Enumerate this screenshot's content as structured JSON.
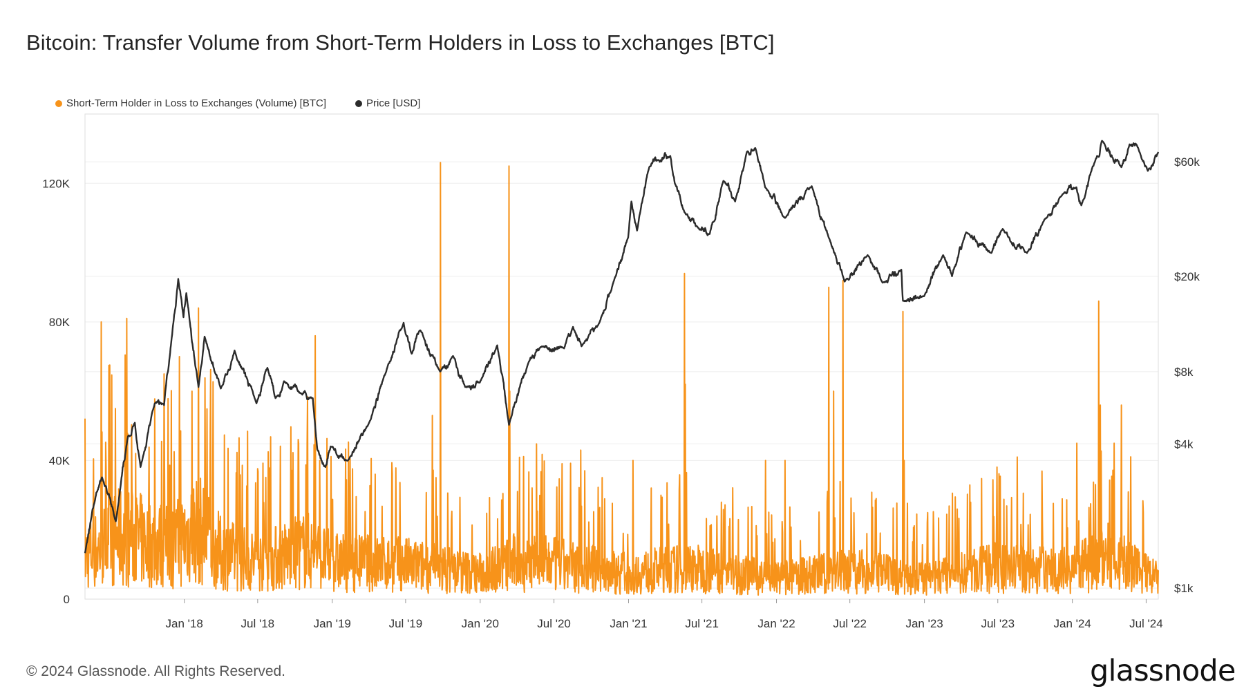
{
  "title": "Bitcoin: Transfer Volume from Short-Term Holders in Loss to Exchanges [BTC]",
  "footer": {
    "copyright": "© 2024 Glassnode. All Rights Reserved.",
    "logo": "glassnode"
  },
  "colors": {
    "volume": "#F7931A",
    "price": "#2B2B2B",
    "grid": "#EEEEEE",
    "axis": "#DDDDDD"
  },
  "chart_data": {
    "type": "line",
    "legend_position": "top-left",
    "grid": true,
    "x_range": [
      "2017-05-01",
      "2024-07-31"
    ],
    "x_ticks": [
      {
        "date": "2018-01-01",
        "label": "Jan '18"
      },
      {
        "date": "2018-07-01",
        "label": "Jul '18"
      },
      {
        "date": "2019-01-01",
        "label": "Jan '19"
      },
      {
        "date": "2019-07-01",
        "label": "Jul '19"
      },
      {
        "date": "2020-01-01",
        "label": "Jan '20"
      },
      {
        "date": "2020-07-01",
        "label": "Jul '20"
      },
      {
        "date": "2021-01-01",
        "label": "Jan '21"
      },
      {
        "date": "2021-07-01",
        "label": "Jul '21"
      },
      {
        "date": "2022-01-01",
        "label": "Jan '22"
      },
      {
        "date": "2022-07-01",
        "label": "Jul '22"
      },
      {
        "date": "2023-01-01",
        "label": "Jan '23"
      },
      {
        "date": "2023-07-01",
        "label": "Jul '23"
      },
      {
        "date": "2024-01-01",
        "label": "Jan '24"
      },
      {
        "date": "2024-07-01",
        "label": "Jul '24"
      }
    ],
    "y_left": {
      "range": [
        0,
        140000
      ],
      "ticks": [
        {
          "value": 0,
          "label": "0"
        },
        {
          "value": 40000,
          "label": "40K"
        },
        {
          "value": 80000,
          "label": "80K"
        },
        {
          "value": 120000,
          "label": "120K"
        }
      ]
    },
    "y_right": {
      "scale": "log",
      "range": [
        900,
        95000
      ],
      "ticks": [
        {
          "value": 1000,
          "label": "$1k"
        },
        {
          "value": 4000,
          "label": "$4k"
        },
        {
          "value": 8000,
          "label": "$8k"
        },
        {
          "value": 20000,
          "label": "$20k"
        },
        {
          "value": 60000,
          "label": "$60k"
        }
      ]
    },
    "series": [
      {
        "name": "Short-Term Holder in Loss to Exchanges (Volume) [BTC]",
        "axis": "left",
        "color": "#F7931A",
        "baseline_points": [
          [
            "2017-05-01",
            15000
          ],
          [
            "2017-08-01",
            22000
          ],
          [
            "2017-12-01",
            18000
          ],
          [
            "2018-02-01",
            25000
          ],
          [
            "2018-04-01",
            16000
          ],
          [
            "2018-07-01",
            13000
          ],
          [
            "2018-11-01",
            17000
          ],
          [
            "2019-01-01",
            13000
          ],
          [
            "2019-07-01",
            12000
          ],
          [
            "2020-01-01",
            9000
          ],
          [
            "2020-04-01",
            13000
          ],
          [
            "2020-07-01",
            12000
          ],
          [
            "2021-01-01",
            9000
          ],
          [
            "2021-06-01",
            11000
          ],
          [
            "2022-01-01",
            7000
          ],
          [
            "2022-07-01",
            10000
          ],
          [
            "2023-01-01",
            7000
          ],
          [
            "2023-07-01",
            11000
          ],
          [
            "2024-01-01",
            10000
          ],
          [
            "2024-04-01",
            15000
          ],
          [
            "2024-07-31",
            7000
          ]
        ],
        "spikes": [
          [
            "2017-06-10",
            80000
          ],
          [
            "2017-07-15",
            55000
          ],
          [
            "2017-08-12",
            81000
          ],
          [
            "2017-11-12",
            65000
          ],
          [
            "2017-12-20",
            70000
          ],
          [
            "2018-02-05",
            84000
          ],
          [
            "2018-01-20",
            60000
          ],
          [
            "2018-11-20",
            76000
          ],
          [
            "2018-12-01",
            40000
          ],
          [
            "2019-09-25",
            126000
          ],
          [
            "2019-09-05",
            53000
          ],
          [
            "2020-03-12",
            125000
          ],
          [
            "2020-03-14",
            60000
          ],
          [
            "2020-09-05",
            43000
          ],
          [
            "2021-01-12",
            40000
          ],
          [
            "2021-05-19",
            94000
          ],
          [
            "2021-05-21",
            62000
          ],
          [
            "2021-12-05",
            40000
          ],
          [
            "2022-01-22",
            40000
          ],
          [
            "2022-05-10",
            90000
          ],
          [
            "2022-06-14",
            92000
          ],
          [
            "2022-05-22",
            60000
          ],
          [
            "2022-11-09",
            83000
          ],
          [
            "2022-11-12",
            40000
          ],
          [
            "2023-08-18",
            41000
          ],
          [
            "2024-01-12",
            45000
          ],
          [
            "2024-03-06",
            86000
          ],
          [
            "2024-03-10",
            56000
          ],
          [
            "2024-04-13",
            45000
          ],
          [
            "2024-05-01",
            56000
          ],
          [
            "2024-06-24",
            25000
          ]
        ]
      },
      {
        "name": "Price [USD]",
        "axis": "right",
        "color": "#2B2B2B",
        "points": [
          [
            "2017-05-01",
            1400
          ],
          [
            "2017-05-25",
            2300
          ],
          [
            "2017-06-12",
            2900
          ],
          [
            "2017-07-16",
            1900
          ],
          [
            "2017-08-15",
            4300
          ],
          [
            "2017-09-01",
            4900
          ],
          [
            "2017-09-15",
            3200
          ],
          [
            "2017-10-20",
            5900
          ],
          [
            "2017-11-12",
            5800
          ],
          [
            "2017-11-28",
            10000
          ],
          [
            "2017-12-17",
            19500
          ],
          [
            "2017-12-30",
            13500
          ],
          [
            "2018-01-06",
            17000
          ],
          [
            "2018-02-05",
            6900
          ],
          [
            "2018-02-20",
            11200
          ],
          [
            "2018-04-01",
            6800
          ],
          [
            "2018-05-05",
            9800
          ],
          [
            "2018-06-28",
            5900
          ],
          [
            "2018-07-25",
            8300
          ],
          [
            "2018-08-14",
            6200
          ],
          [
            "2018-09-04",
            7300
          ],
          [
            "2018-10-15",
            6500
          ],
          [
            "2018-11-14",
            6200
          ],
          [
            "2018-11-25",
            3800
          ],
          [
            "2018-12-15",
            3200
          ],
          [
            "2018-12-28",
            3900
          ],
          [
            "2019-02-08",
            3400
          ],
          [
            "2019-04-02",
            4900
          ],
          [
            "2019-05-14",
            8000
          ],
          [
            "2019-06-26",
            12800
          ],
          [
            "2019-07-16",
            9500
          ],
          [
            "2019-08-06",
            11900
          ],
          [
            "2019-09-24",
            8000
          ],
          [
            "2019-10-26",
            9300
          ],
          [
            "2019-11-25",
            6900
          ],
          [
            "2019-12-31",
            7200
          ],
          [
            "2020-02-12",
            10300
          ],
          [
            "2020-03-12",
            4800
          ],
          [
            "2020-04-30",
            8800
          ],
          [
            "2020-06-01",
            10200
          ],
          [
            "2020-07-26",
            10000
          ],
          [
            "2020-08-17",
            12300
          ],
          [
            "2020-09-07",
            10200
          ],
          [
            "2020-10-21",
            12800
          ],
          [
            "2020-11-25",
            19000
          ],
          [
            "2020-12-31",
            29000
          ],
          [
            "2021-01-08",
            41000
          ],
          [
            "2021-01-22",
            31000
          ],
          [
            "2021-02-21",
            57000
          ],
          [
            "2021-03-14",
            61000
          ],
          [
            "2021-04-14",
            63500
          ],
          [
            "2021-04-25",
            49000
          ],
          [
            "2021-05-19",
            37000
          ],
          [
            "2021-06-22",
            31800
          ],
          [
            "2021-07-20",
            30000
          ],
          [
            "2021-08-23",
            50000
          ],
          [
            "2021-09-21",
            41000
          ],
          [
            "2021-10-20",
            66000
          ],
          [
            "2021-11-10",
            68500
          ],
          [
            "2021-12-04",
            47000
          ],
          [
            "2022-01-22",
            35000
          ],
          [
            "2022-03-29",
            47500
          ],
          [
            "2022-05-12",
            28500
          ],
          [
            "2022-06-18",
            19000
          ],
          [
            "2022-08-14",
            24500
          ],
          [
            "2022-09-20",
            18800
          ],
          [
            "2022-11-05",
            21300
          ],
          [
            "2022-11-09",
            15800
          ],
          [
            "2022-12-31",
            16500
          ],
          [
            "2023-02-16",
            24500
          ],
          [
            "2023-03-10",
            20000
          ],
          [
            "2023-04-14",
            30500
          ],
          [
            "2023-06-15",
            25000
          ],
          [
            "2023-07-13",
            31500
          ],
          [
            "2023-09-11",
            25000
          ],
          [
            "2023-10-24",
            34500
          ],
          [
            "2023-12-08",
            44000
          ],
          [
            "2024-01-11",
            47000
          ],
          [
            "2024-01-23",
            39500
          ],
          [
            "2024-02-28",
            62000
          ],
          [
            "2024-03-14",
            73500
          ],
          [
            "2024-05-01",
            57000
          ],
          [
            "2024-05-21",
            71000
          ],
          [
            "2024-06-07",
            71000
          ],
          [
            "2024-07-05",
            55000
          ],
          [
            "2024-07-31",
            66000
          ]
        ]
      }
    ]
  }
}
